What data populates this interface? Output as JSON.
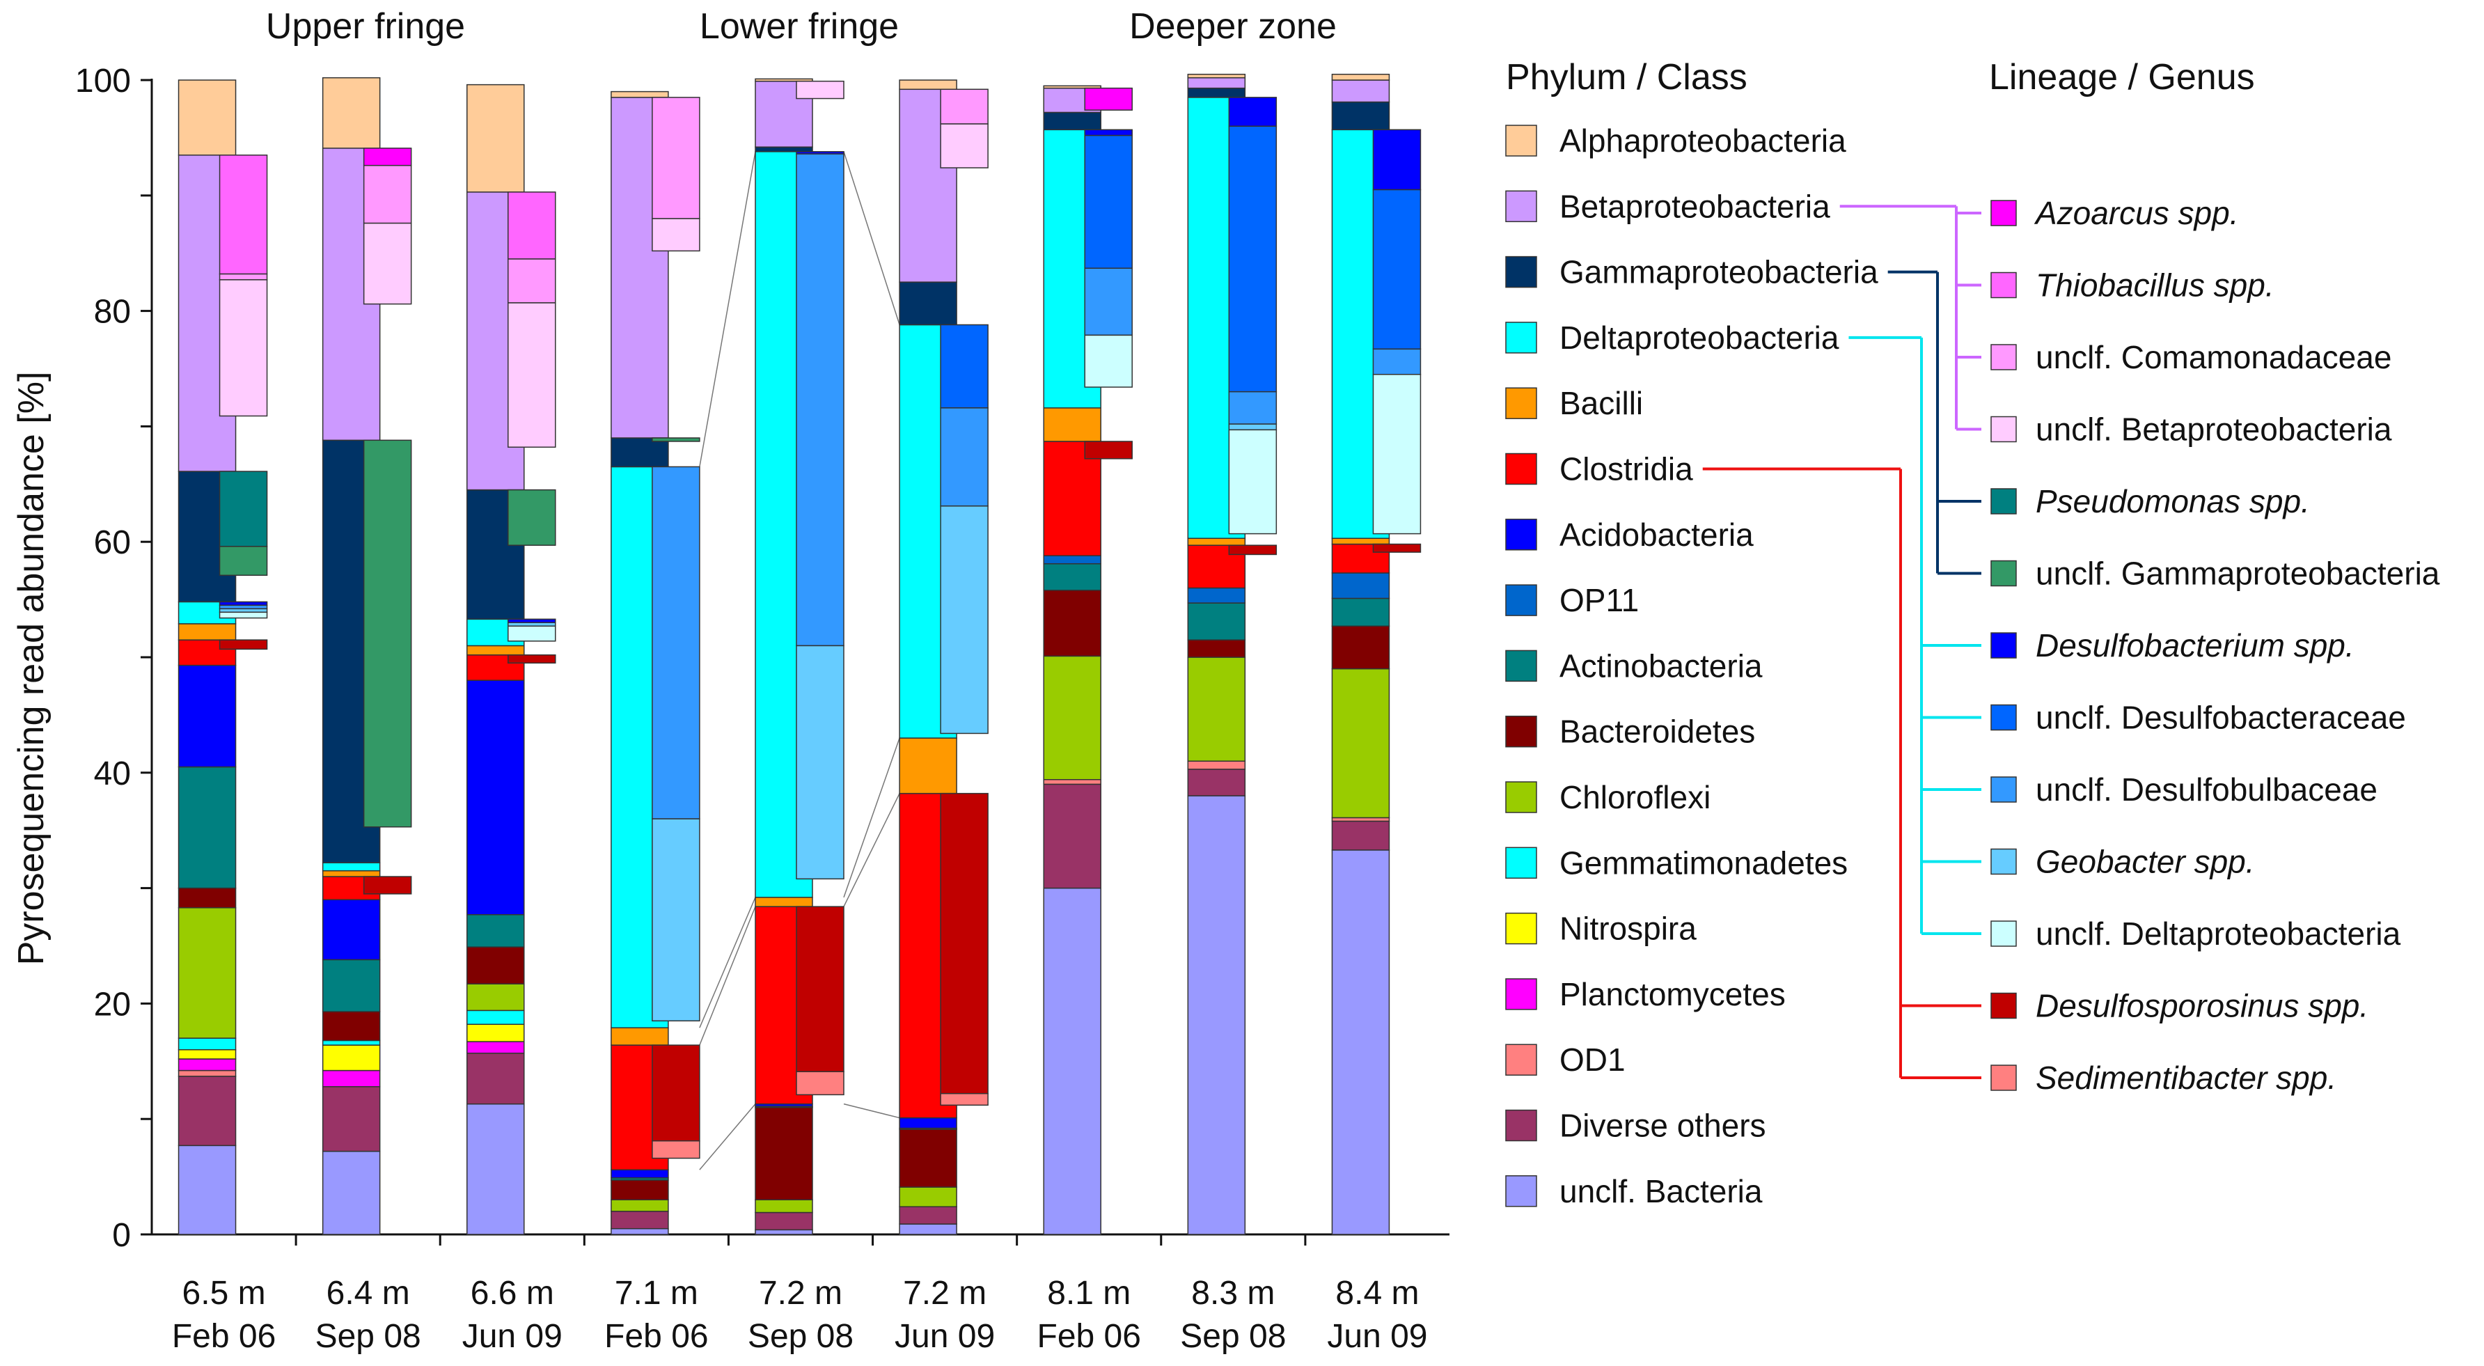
{
  "chart_data": {
    "type": "stacked-bar",
    "ylabel": "Pyrosequencing read abundance [%]",
    "ylim": [
      0,
      100
    ],
    "yticks": [
      0,
      20,
      40,
      60,
      80,
      100
    ],
    "zones": [
      "Upper fringe",
      "Lower fringe",
      "Deeper zone"
    ],
    "samples": [
      {
        "depth": "6.5 m",
        "date": "Feb 06",
        "zone": 0
      },
      {
        "depth": "6.4 m",
        "date": "Sep 08",
        "zone": 0
      },
      {
        "depth": "6.6 m",
        "date": "Jun 09",
        "zone": 0
      },
      {
        "depth": "7.1 m",
        "date": "Feb 06",
        "zone": 1
      },
      {
        "depth": "7.2 m",
        "date": "Sep 08",
        "zone": 1
      },
      {
        "depth": "7.2 m",
        "date": "Jun 09",
        "zone": 1
      },
      {
        "depth": "8.1 m",
        "date": "Feb 06",
        "zone": 2
      },
      {
        "depth": "8.3 m",
        "date": "Sep 08",
        "zone": 2
      },
      {
        "depth": "8.4 m",
        "date": "Jun 09",
        "zone": 2
      }
    ],
    "phylum_header": "Phylum / Class",
    "phyla": [
      {
        "name": "unclf. Bacteria",
        "color": "#9999ff",
        "values": [
          7.7,
          7.2,
          11.3,
          0.5,
          0.4,
          0.9,
          30.0,
          38.0,
          33.3
        ]
      },
      {
        "name": "Diverse others",
        "color": "#993366",
        "values": [
          6.0,
          5.6,
          4.4,
          1.5,
          1.5,
          1.5,
          9.0,
          2.3,
          2.5
        ]
      },
      {
        "name": "OD1",
        "color": "#ff8080",
        "values": [
          0.5,
          0,
          0,
          0,
          0,
          0,
          0.4,
          0.7,
          0.3
        ]
      },
      {
        "name": "Planctomycetes",
        "color": "#ff00ff",
        "values": [
          1.0,
          1.4,
          1.0,
          0,
          0,
          0,
          0,
          0,
          0
        ]
      },
      {
        "name": "Nitrospira",
        "color": "#ffff00",
        "values": [
          0.8,
          2.2,
          1.5,
          0,
          0,
          0,
          0,
          0,
          0
        ]
      },
      {
        "name": "Gemmatimonadetes",
        "color": "#00ffff",
        "values": [
          1.0,
          0.4,
          1.2,
          0,
          0,
          0,
          0,
          0,
          0
        ]
      },
      {
        "name": "Chloroflexi",
        "color": "#99cc00",
        "values": [
          11.3,
          0,
          2.3,
          1.0,
          1.1,
          1.7,
          10.7,
          9.0,
          12.9
        ]
      },
      {
        "name": "Bacteroidetes",
        "color": "#800000",
        "values": [
          1.7,
          2.5,
          3.2,
          1.7,
          8.0,
          5.0,
          5.7,
          1.5,
          3.7
        ]
      },
      {
        "name": "Actinobacteria",
        "color": "#008080",
        "values": [
          10.5,
          4.5,
          2.8,
          0.2,
          0.1,
          0.1,
          2.3,
          3.2,
          2.4
        ]
      },
      {
        "name": "OP11",
        "color": "#0066cc",
        "values": [
          0,
          0,
          0,
          0,
          0,
          0,
          0.7,
          1.3,
          2.2
        ]
      },
      {
        "name": "Acidobacteria",
        "color": "#0000ff",
        "values": [
          8.8,
          5.2,
          20.3,
          0.7,
          0.2,
          0.9,
          0,
          0,
          0
        ]
      },
      {
        "name": "Clostridia",
        "color": "#ff0000",
        "values": [
          2.2,
          2.0,
          2.2,
          10.8,
          17.1,
          28.1,
          9.9,
          3.7,
          2.5
        ]
      },
      {
        "name": "Bacilli",
        "color": "#ff9900",
        "values": [
          1.4,
          0.5,
          0.8,
          1.5,
          0.8,
          4.8,
          2.9,
          0.6,
          0.5
        ]
      },
      {
        "name": "Deltaproteobacteria",
        "color": "#00ffff",
        "values": [
          1.9,
          0.7,
          2.3,
          48.6,
          64.6,
          35.8,
          24.1,
          38.2,
          35.4
        ]
      },
      {
        "name": "Gammaproteobacteria",
        "color": "#003366",
        "values": [
          11.3,
          36.6,
          11.2,
          2.5,
          0.4,
          3.7,
          1.5,
          0.8,
          2.4
        ]
      },
      {
        "name": "Betaproteobacteria",
        "color": "#cc99ff",
        "values": [
          27.4,
          25.3,
          25.8,
          29.5,
          5.7,
          16.7,
          2.1,
          0.9,
          1.9
        ]
      },
      {
        "name": "Alphaproteobacteria",
        "color": "#ffcc99",
        "values": [
          6.5,
          6.1,
          9.3,
          0.5,
          0.2,
          0.8,
          0.2,
          0.3,
          0.5
        ]
      }
    ],
    "genus_header": "Lineage / Genus",
    "genera": [
      {
        "name": "Azoarcus spp.",
        "italic": true,
        "color": "#ff00ff",
        "phylum": "Betaproteobacteria",
        "values": [
          0,
          1.5,
          0,
          0,
          0,
          0,
          1.9,
          0,
          0
        ]
      },
      {
        "name": "Thiobacillus spp.",
        "italic": true,
        "color": "#ff66ff",
        "phylum": "Betaproteobacteria",
        "values": [
          10.3,
          0,
          5.8,
          0,
          0,
          0,
          0,
          0,
          0
        ]
      },
      {
        "name": "unclf. Comamonadaceae",
        "italic": false,
        "color": "#ff99ff",
        "phylum": "Betaproteobacteria",
        "values": [
          0.5,
          5.0,
          3.8,
          10.5,
          0,
          3.0,
          0,
          0,
          0
        ]
      },
      {
        "name": "unclf. Betaproteobacteria",
        "italic": false,
        "color": "#ffccff",
        "phylum": "Betaproteobacteria",
        "values": [
          11.8,
          7.0,
          12.5,
          2.8,
          1.5,
          3.8,
          0,
          0,
          0
        ]
      },
      {
        "name": "Pseudomonas spp.",
        "italic": true,
        "color": "#008080",
        "phylum": "Gammaproteobacteria",
        "values": [
          6.5,
          0,
          0,
          0,
          0,
          0,
          0,
          0,
          0
        ]
      },
      {
        "name": "unclf. Gammaproteobacteria",
        "italic": false,
        "color": "#339966",
        "phylum": "Gammaproteobacteria",
        "values": [
          2.5,
          33.5,
          4.8,
          0.3,
          0,
          0,
          0,
          0,
          0
        ]
      },
      {
        "name": "Desulfobacterium spp.",
        "italic": true,
        "color": "#0000ff",
        "phylum": "Deltaproteobacteria",
        "values": [
          0.3,
          0,
          0.3,
          0,
          0.2,
          0,
          0.5,
          2.5,
          5.2
        ]
      },
      {
        "name": "unclf. Desulfobacteraceae",
        "italic": false,
        "color": "#0066ff",
        "phylum": "Deltaproteobacteria",
        "values": [
          0,
          0,
          0,
          0,
          0,
          7.2,
          11.5,
          23.0,
          13.8
        ]
      },
      {
        "name": "unclf. Desulfobulbaceae",
        "italic": false,
        "color": "#3399ff",
        "phylum": "Deltaproteobacteria",
        "values": [
          0.3,
          0,
          0,
          30.5,
          42.6,
          8.5,
          5.8,
          2.8,
          2.2
        ]
      },
      {
        "name": "Geobacter spp.",
        "italic": true,
        "color": "#66ccff",
        "phylum": "Deltaproteobacteria",
        "values": [
          0.3,
          0,
          0.3,
          17.5,
          20.2,
          19.7,
          0,
          0.5,
          0
        ]
      },
      {
        "name": "unclf. Deltaproteobacteria",
        "italic": false,
        "color": "#ccffff",
        "phylum": "Deltaproteobacteria",
        "values": [
          0.5,
          0,
          1.3,
          0,
          0,
          0,
          4.5,
          9.0,
          13.8
        ]
      },
      {
        "name": "Desulfosporosinus spp.",
        "italic": true,
        "color": "#c00000",
        "phylum": "Clostridia",
        "values": [
          0.8,
          1.5,
          0.7,
          8.3,
          14.3,
          26.0,
          1.5,
          0.8,
          0.7
        ]
      },
      {
        "name": "Sedimentibacter spp.",
        "italic": true,
        "color": "#ff8080",
        "phylum": "Clostridia",
        "values": [
          0,
          0,
          0,
          1.5,
          2.0,
          1.0,
          0,
          0,
          0
        ]
      }
    ],
    "genus_offsets": [
      51.5,
      30.0,
      50.5,
      7.5,
      12.0,
      11.0,
      59.0,
      59.5,
      59.5
    ],
    "tree_groups": [
      {
        "phylum": "Betaproteobacteria",
        "color": "#cc66ff"
      },
      {
        "phylum": "Gammaproteobacteria",
        "color": "#003366"
      },
      {
        "phylum": "Deltaproteobacteria",
        "color": "#00e5ee"
      },
      {
        "phylum": "Clostridia",
        "color": "#ee1111"
      }
    ]
  }
}
